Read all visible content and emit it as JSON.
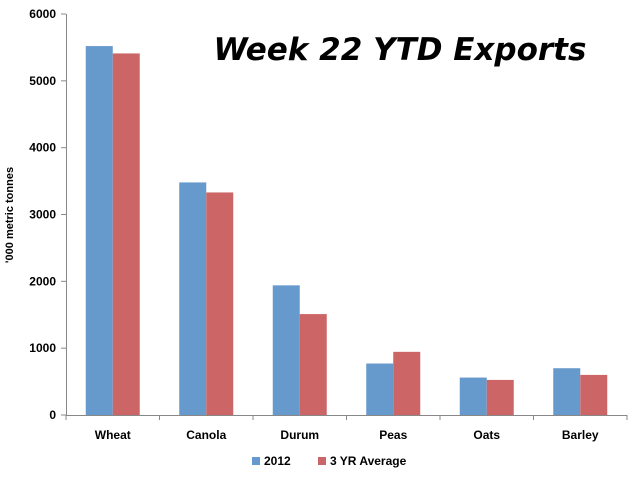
{
  "chart_data": {
    "type": "bar",
    "title": "Week 22 YTD Exports",
    "xlabel": "",
    "ylabel": "'000 metric tonnes",
    "categories": [
      "Wheat",
      "Canola",
      "Durum",
      "Peas",
      "Oats",
      "Barley"
    ],
    "series": [
      {
        "name": "2012",
        "color": "#6699cc",
        "values": [
          5520,
          3480,
          1940,
          770,
          560,
          700
        ]
      },
      {
        "name": "3 YR Average",
        "color": "#cc6666",
        "values": [
          5410,
          3330,
          1510,
          945,
          525,
          600
        ]
      }
    ],
    "ylim": [
      0,
      6000
    ],
    "yticks": [
      0,
      1000,
      2000,
      3000,
      4000,
      5000,
      6000
    ],
    "grid": false,
    "legend_position": "bottom"
  }
}
